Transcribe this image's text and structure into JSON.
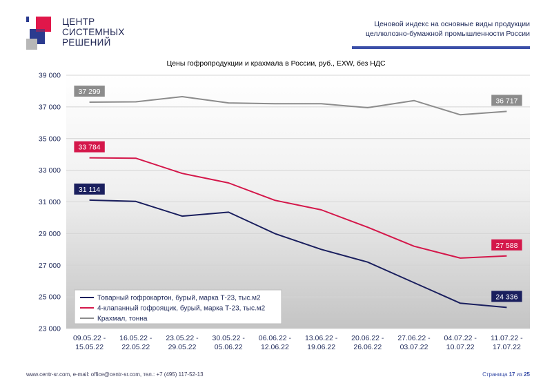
{
  "header": {
    "logo_lines": [
      "ЦЕНТР",
      "СИСТЕМНЫХ",
      "РЕШЕНИЙ"
    ],
    "report_title_lines": [
      "Ценовой индекс на основные виды продукции",
      "целлюлозно-бумажной промышленности России"
    ],
    "accent_color": "#3b4fa8"
  },
  "chart_data": {
    "type": "line",
    "title": "Цены гофропродукции и крахмала в России, руб., EXW, без НДС",
    "categories": [
      "09.05.22 - 15.05.22",
      "16.05.22 - 22.05.22",
      "23.05.22 - 29.05.22",
      "30.05.22 - 05.06.22",
      "06.06.22 - 12.06.22",
      "13.06.22 - 19.06.22",
      "20.06.22 - 26.06.22",
      "27.06.22 - 03.07.22",
      "04.07.22 - 10.07.22",
      "11.07.22 - 17.07.22"
    ],
    "ylim": [
      23000,
      39000
    ],
    "yticks": [
      "23 000",
      "25 000",
      "27 000",
      "29 000",
      "31 000",
      "33 000",
      "35 000",
      "37 000",
      "39 000"
    ],
    "grid": true,
    "legend_position": "bottom-left",
    "series": [
      {
        "name": "Товарный гофрокартон, бурый, марка Т-23, тыс.м2",
        "color": "#1a1f5e",
        "values": [
          31114,
          31030,
          30100,
          30350,
          29000,
          28000,
          27200,
          25900,
          24600,
          24336
        ],
        "start_label": "31 114",
        "end_label": "24 336"
      },
      {
        "name": "4-клапанный гофроящик, бурый, марка Т-23, тыс.м2",
        "color": "#d4174a",
        "values": [
          33784,
          33760,
          32800,
          32200,
          31100,
          30500,
          29400,
          28200,
          27450,
          27588
        ],
        "start_label": "33 784",
        "end_label": "27 588"
      },
      {
        "name": "Крахмал, тонна",
        "color": "#8c8c8c",
        "values": [
          37299,
          37320,
          37650,
          37250,
          37200,
          37200,
          36950,
          37400,
          36500,
          36717
        ],
        "start_label": "37 299",
        "end_label": "36 717"
      }
    ]
  },
  "footer": {
    "contacts": "www.centr-sr.com, e-mail: office@centr-sr.com, тел.: +7 (495) 117-52-13",
    "page_prefix": "Страница",
    "page_current": "17",
    "page_sep": "из",
    "page_total": "25"
  }
}
